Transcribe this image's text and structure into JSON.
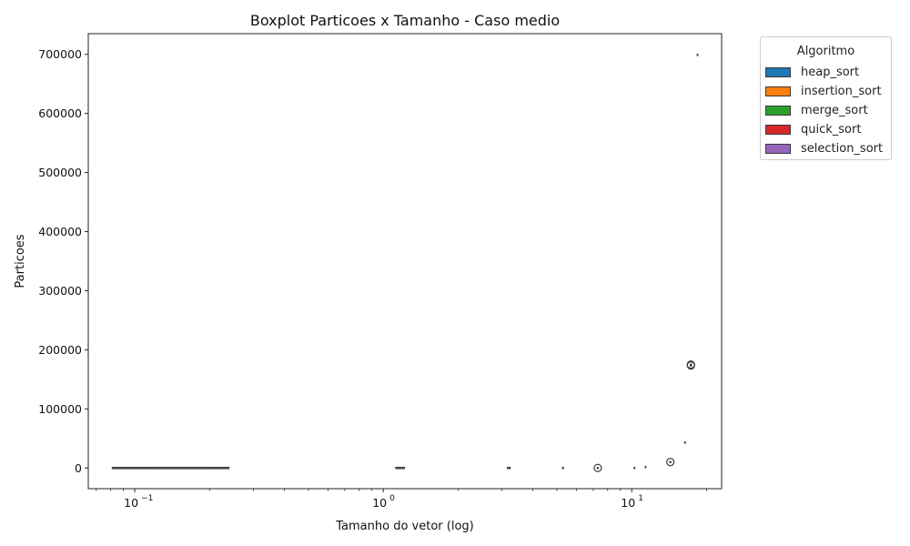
{
  "chart_data": {
    "type": "boxplot",
    "title": "Boxplot Particoes x Tamanho - Caso medio",
    "xlabel": "Tamanho do vetor (log)",
    "ylabel": "Particoes",
    "x_scale": "log",
    "xlim": [
      0.065,
      23
    ],
    "ylim": [
      -35000,
      735000
    ],
    "x_ticks": [
      {
        "value": 0.1,
        "base": "10",
        "exp": "−1"
      },
      {
        "value": 1,
        "base": "10",
        "exp": "0"
      },
      {
        "value": 10,
        "base": "10",
        "exp": "1"
      }
    ],
    "y_ticks": [
      0,
      100000,
      200000,
      300000,
      400000,
      500000,
      600000,
      700000
    ],
    "y_tick_labels": [
      "0",
      "100000",
      "200000",
      "300000",
      "400000",
      "500000",
      "600000",
      "700000"
    ],
    "grid": false,
    "legend": {
      "title": "Algoritmo",
      "placement": "outside-top-right",
      "items": [
        {
          "name": "heap_sort",
          "color": "#1f77b4"
        },
        {
          "name": "insertion_sort",
          "color": "#ff7f0e"
        },
        {
          "name": "merge_sort",
          "color": "#2ca02c"
        },
        {
          "name": "quick_sort",
          "color": "#d62728"
        },
        {
          "name": "selection_sort",
          "color": "#9467bd"
        }
      ]
    },
    "boxes": [
      {
        "x_from": 0.081,
        "x_to": 0.24,
        "median": 0
      },
      {
        "x_from": 0.121,
        "x_to": 0.2,
        "median": 0
      },
      {
        "x_from": 1.12,
        "x_to": 1.22,
        "median": 0
      },
      {
        "x_from": 3.15,
        "x_to": 3.25,
        "median": 0
      },
      {
        "x_from": 5.25,
        "x_to": 5.32,
        "median": 0
      },
      {
        "x_from": 10.2,
        "x_to": 10.3,
        "median": 0
      },
      {
        "x_from": 11.3,
        "x_to": 11.4,
        "median": 1500
      },
      {
        "x_from": 16.3,
        "x_to": 16.4,
        "median": 43000
      },
      {
        "x_from": 18.3,
        "x_to": 18.4,
        "median": 699000
      }
    ],
    "outliers": [
      {
        "x": 7.3,
        "y": 0
      },
      {
        "x": 14.3,
        "y": 10000
      },
      {
        "x": 17.3,
        "y": 173500
      },
      {
        "x": 17.3,
        "y": 175000
      }
    ]
  }
}
